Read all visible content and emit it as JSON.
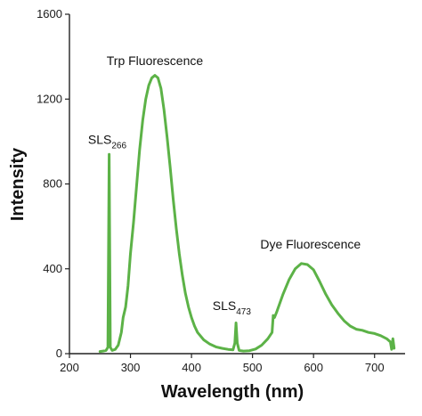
{
  "chart_data": {
    "type": "line",
    "xlabel": "Wavelength (nm)",
    "ylabel": "Intensity",
    "xlim": [
      200,
      750
    ],
    "ylim": [
      0,
      1600
    ],
    "x_ticks": [
      "200",
      "300",
      "400",
      "500",
      "600",
      "700"
    ],
    "y_ticks": [
      "0",
      "400",
      "800",
      "1200",
      "1600"
    ],
    "grid": false,
    "colors": {
      "line": "#5cb247",
      "axis": "#222222"
    },
    "annotations": [
      {
        "text": "Trp Fluorescence",
        "sub": "",
        "x": 340,
        "y": 1360
      },
      {
        "text": "SLS",
        "sub": "266",
        "x": 262,
        "y": 990
      },
      {
        "text": "Dye Fluorescence",
        "sub": "",
        "x": 595,
        "y": 495
      },
      {
        "text": "SLS",
        "sub": "473",
        "x": 466,
        "y": 205
      }
    ],
    "series": [
      {
        "points": [
          [
            250,
            10
          ],
          [
            255,
            12
          ],
          [
            260,
            15
          ],
          [
            263,
            30
          ],
          [
            265,
            940
          ],
          [
            267,
            30
          ],
          [
            270,
            15
          ],
          [
            275,
            20
          ],
          [
            280,
            40
          ],
          [
            285,
            100
          ],
          [
            288,
            170
          ],
          [
            292,
            220
          ],
          [
            296,
            320
          ],
          [
            300,
            470
          ],
          [
            305,
            620
          ],
          [
            310,
            790
          ],
          [
            315,
            960
          ],
          [
            320,
            1100
          ],
          [
            325,
            1200
          ],
          [
            330,
            1265
          ],
          [
            335,
            1300
          ],
          [
            340,
            1312
          ],
          [
            345,
            1300
          ],
          [
            350,
            1250
          ],
          [
            355,
            1150
          ],
          [
            360,
            1020
          ],
          [
            365,
            880
          ],
          [
            370,
            730
          ],
          [
            375,
            590
          ],
          [
            380,
            470
          ],
          [
            385,
            370
          ],
          [
            390,
            285
          ],
          [
            395,
            220
          ],
          [
            400,
            170
          ],
          [
            405,
            130
          ],
          [
            410,
            100
          ],
          [
            420,
            65
          ],
          [
            430,
            45
          ],
          [
            440,
            32
          ],
          [
            450,
            25
          ],
          [
            460,
            20
          ],
          [
            468,
            18
          ],
          [
            471,
            50
          ],
          [
            473,
            145
          ],
          [
            475,
            50
          ],
          [
            478,
            15
          ],
          [
            485,
            12
          ],
          [
            495,
            14
          ],
          [
            505,
            22
          ],
          [
            515,
            40
          ],
          [
            525,
            70
          ],
          [
            532,
            100
          ],
          [
            534,
            180
          ],
          [
            536,
            170
          ],
          [
            540,
            200
          ],
          [
            550,
            280
          ],
          [
            560,
            350
          ],
          [
            570,
            400
          ],
          [
            580,
            425
          ],
          [
            590,
            420
          ],
          [
            600,
            395
          ],
          [
            610,
            340
          ],
          [
            620,
            280
          ],
          [
            630,
            230
          ],
          [
            640,
            190
          ],
          [
            650,
            155
          ],
          [
            660,
            130
          ],
          [
            670,
            115
          ],
          [
            680,
            110
          ],
          [
            690,
            100
          ],
          [
            700,
            95
          ],
          [
            710,
            85
          ],
          [
            720,
            70
          ],
          [
            726,
            55
          ],
          [
            728,
            20
          ],
          [
            730,
            70
          ],
          [
            732,
            25
          ]
        ]
      }
    ]
  }
}
